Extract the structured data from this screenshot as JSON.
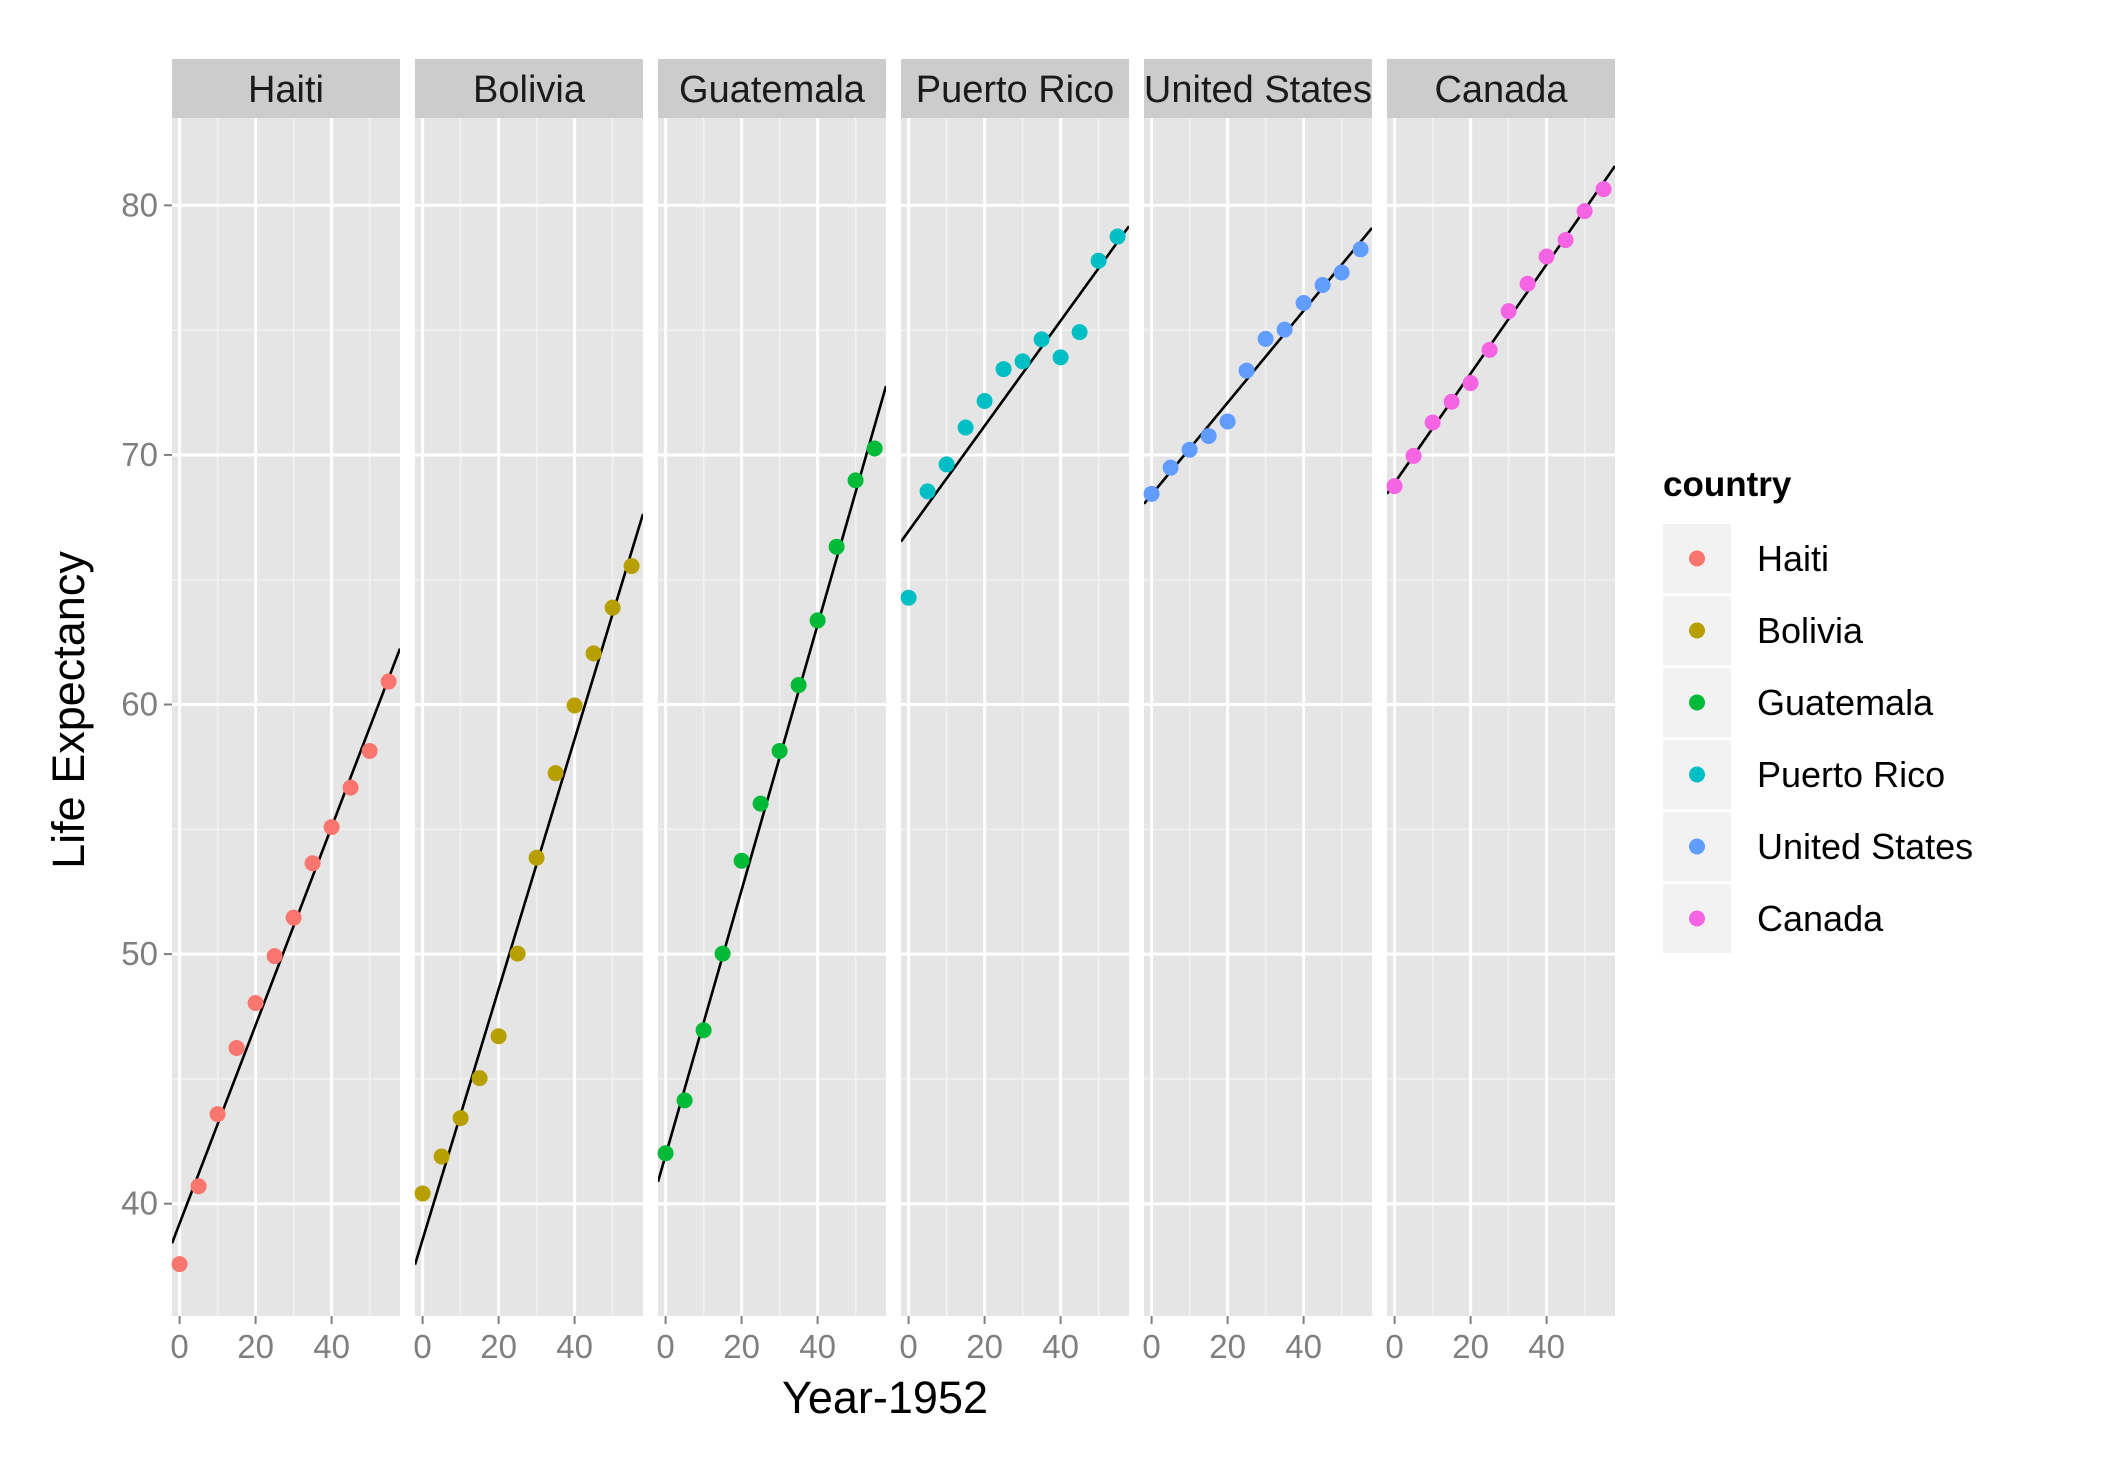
{
  "chart_data": {
    "type": "scatter",
    "xlabel": "Year-1952",
    "ylabel": "Life Expectancy",
    "xlim": [
      -2,
      58
    ],
    "ylim": [
      35.5,
      83.5
    ],
    "x_ticks": [
      0,
      20,
      40
    ],
    "y_ticks": [
      40,
      50,
      60,
      70,
      80
    ],
    "x": [
      0,
      5,
      10,
      15,
      20,
      25,
      30,
      35,
      40,
      45,
      50,
      55
    ],
    "legend": {
      "title": "country",
      "position": "right"
    },
    "grid": true,
    "fit_line_color": "#000000",
    "panel_background": "#e5e5e5",
    "strip_background": "#cccccc",
    "series": [
      {
        "name": "Haiti",
        "color": "#F8766D",
        "values": [
          37.58,
          40.7,
          43.59,
          46.24,
          48.04,
          49.92,
          51.46,
          53.64,
          55.09,
          56.67,
          58.14,
          60.92
        ],
        "fit": {
          "intercept": 39.21,
          "slope": 0.3971
        }
      },
      {
        "name": "Bolivia",
        "color": "#B79F00",
        "values": [
          40.41,
          41.89,
          43.43,
          45.03,
          46.71,
          50.02,
          53.86,
          57.25,
          59.96,
          62.05,
          63.88,
          65.55
        ],
        "fit": {
          "intercept": 38.56,
          "slope": 0.5013
        }
      },
      {
        "name": "Guatemala",
        "color": "#00BA38",
        "values": [
          42.02,
          44.14,
          46.95,
          50.02,
          53.74,
          56.03,
          58.14,
          60.78,
          63.37,
          66.32,
          68.98,
          70.26
        ],
        "fit": {
          "intercept": 41.94,
          "slope": 0.5313
        }
      },
      {
        "name": "Puerto Rico",
        "color": "#00BFC4",
        "values": [
          64.28,
          68.54,
          69.62,
          71.1,
          72.16,
          73.44,
          73.75,
          74.63,
          73.91,
          74.92,
          77.78,
          78.75
        ],
        "fit": {
          "intercept": 66.95,
          "slope": 0.2106
        }
      },
      {
        "name": "United States",
        "color": "#619CFF",
        "values": [
          68.44,
          69.49,
          70.21,
          70.76,
          71.34,
          73.38,
          74.65,
          75.02,
          76.09,
          76.81,
          77.31,
          78.24
        ],
        "fit": {
          "intercept": 68.41,
          "slope": 0.1842
        }
      },
      {
        "name": "Canada",
        "color": "#F564E3",
        "values": [
          68.75,
          69.96,
          71.3,
          72.13,
          72.88,
          74.21,
          75.76,
          76.86,
          77.95,
          78.61,
          79.77,
          80.65
        ],
        "fit": {
          "intercept": 68.88,
          "slope": 0.2189
        }
      }
    ]
  }
}
